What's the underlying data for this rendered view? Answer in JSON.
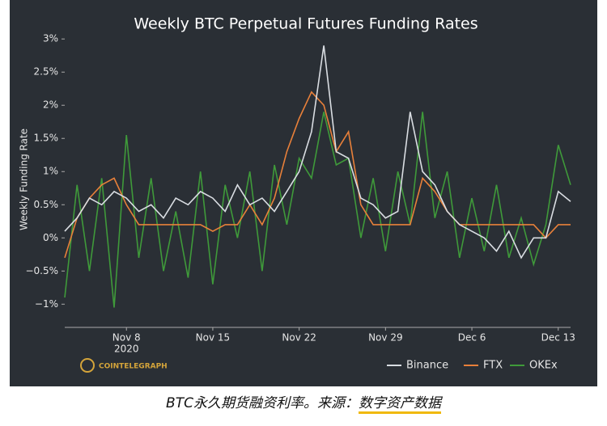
{
  "chart_data": {
    "type": "line",
    "title": "Weekly BTC Perpetual Futures Funding Rates",
    "y_label": "Weekly Funding Rate",
    "x": [
      "2020-11-03",
      "2020-11-04",
      "2020-11-05",
      "2020-11-06",
      "2020-11-07",
      "2020-11-08",
      "2020-11-09",
      "2020-11-10",
      "2020-11-11",
      "2020-11-12",
      "2020-11-13",
      "2020-11-14",
      "2020-11-15",
      "2020-11-16",
      "2020-11-17",
      "2020-11-18",
      "2020-11-19",
      "2020-11-20",
      "2020-11-21",
      "2020-11-22",
      "2020-11-23",
      "2020-11-24",
      "2020-11-25",
      "2020-11-26",
      "2020-11-27",
      "2020-11-28",
      "2020-11-29",
      "2020-11-30",
      "2020-12-01",
      "2020-12-02",
      "2020-12-03",
      "2020-12-04",
      "2020-12-05",
      "2020-12-06",
      "2020-12-07",
      "2020-12-08",
      "2020-12-09",
      "2020-12-10",
      "2020-12-11",
      "2020-12-12",
      "2020-12-13",
      "2020-12-14"
    ],
    "series": [
      {
        "name": "Binance",
        "color": "#d9dde2",
        "values": [
          0.1,
          0.3,
          0.6,
          0.5,
          0.7,
          0.6,
          0.4,
          0.5,
          0.3,
          0.6,
          0.5,
          0.7,
          0.6,
          0.4,
          0.8,
          0.5,
          0.6,
          0.4,
          0.7,
          1.0,
          1.6,
          2.9,
          1.3,
          1.2,
          0.6,
          0.5,
          0.3,
          0.4,
          1.9,
          1.0,
          0.8,
          0.4,
          0.2,
          0.1,
          0.0,
          -0.2,
          0.1,
          -0.3,
          0.0,
          0.0,
          0.7,
          0.55
        ]
      },
      {
        "name": "FTX",
        "color": "#e8803a",
        "values": [
          -0.3,
          0.3,
          0.6,
          0.8,
          0.9,
          0.5,
          0.2,
          0.2,
          0.2,
          0.2,
          0.2,
          0.2,
          0.1,
          0.2,
          0.2,
          0.5,
          0.2,
          0.6,
          1.3,
          1.8,
          2.2,
          2.0,
          1.3,
          1.6,
          0.5,
          0.2,
          0.2,
          0.2,
          0.2,
          0.9,
          0.7,
          0.4,
          0.2,
          0.2,
          0.2,
          0.2,
          0.2,
          0.2,
          0.2,
          0.0,
          0.2,
          0.2
        ]
      },
      {
        "name": "OKEx",
        "color": "#3f9a3a",
        "values": [
          -0.9,
          0.8,
          -0.5,
          0.9,
          -1.05,
          1.55,
          -0.3,
          0.9,
          -0.5,
          0.4,
          -0.6,
          1.0,
          -0.7,
          0.8,
          0.0,
          1.0,
          -0.5,
          1.1,
          0.2,
          1.2,
          0.9,
          1.9,
          1.1,
          1.2,
          0.0,
          0.9,
          -0.2,
          1.0,
          0.2,
          1.9,
          0.3,
          1.0,
          -0.3,
          0.6,
          -0.2,
          0.8,
          -0.3,
          0.3,
          -0.4,
          0.2,
          1.4,
          0.8
        ]
      }
    ],
    "xlim": [
      "2020-11-03",
      "2020-12-14"
    ],
    "xticks": [
      {
        "value": "2020-11-08",
        "label": "Nov 8"
      },
      {
        "value": "2020-11-15",
        "label": "Nov 15"
      },
      {
        "value": "2020-11-22",
        "label": "Nov 22"
      },
      {
        "value": "2020-11-29",
        "label": "Nov 29"
      },
      {
        "value": "2020-12-06",
        "label": "Dec 6"
      },
      {
        "value": "2020-12-13",
        "label": "Dec 13"
      }
    ],
    "x_year_label": "2020",
    "ylim": [
      -1.35,
      3.1
    ],
    "yticks": [
      {
        "value": -1,
        "label": "−1%"
      },
      {
        "value": -0.5,
        "label": "−0.5%"
      },
      {
        "value": 0,
        "label": "0%"
      },
      {
        "value": 0.5,
        "label": "0.5%"
      },
      {
        "value": 1,
        "label": "1%"
      },
      {
        "value": 1.5,
        "label": "1.5%"
      },
      {
        "value": 2,
        "label": "2%"
      },
      {
        "value": 2.5,
        "label": "2.5%"
      },
      {
        "value": 3,
        "label": "3%"
      }
    ],
    "legend_position": "bottom-right",
    "source": "COINTELEGRAPH"
  },
  "caption": {
    "text": "BTC永久期货融资利率。来源：",
    "link": "数字资产数据"
  }
}
